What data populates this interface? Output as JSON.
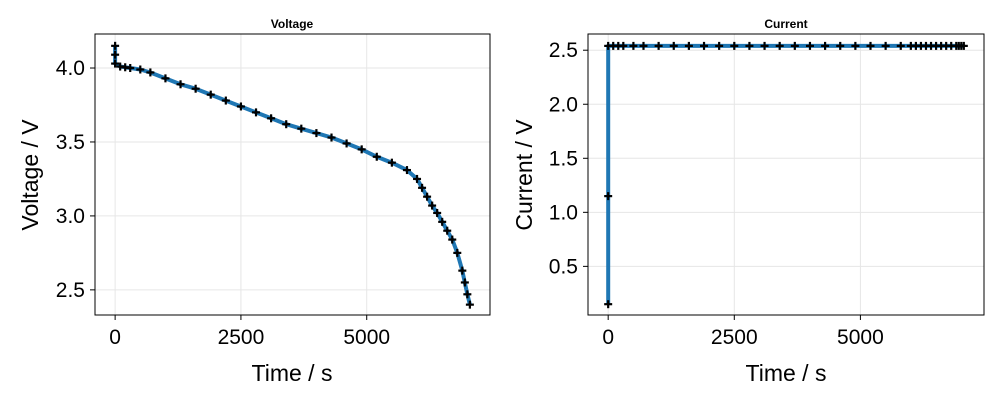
{
  "colors": {
    "line": "#1f77b4",
    "marker": "#000000",
    "grid": "#e6e6e6"
  },
  "chart_data": [
    {
      "type": "line",
      "title": "Voltage",
      "xlabel": "Time / s",
      "ylabel": "Voltage / V",
      "xlim": [
        -400,
        7450
      ],
      "ylim": [
        2.33,
        4.23
      ],
      "xticks": [
        0,
        2500,
        5000
      ],
      "xtick_labels": [
        "0",
        "2500",
        "5000"
      ],
      "yticks": [
        2.5,
        3.0,
        3.5,
        4.0
      ],
      "ytick_labels": [
        "2.5",
        "3.0",
        "3.5",
        "4.0"
      ],
      "grid": true,
      "series": [
        {
          "marker": "plus",
          "x": [
            0,
            0,
            0,
            100,
            200,
            300,
            500,
            700,
            1000,
            1300,
            1600,
            1900,
            2200,
            2500,
            2800,
            3100,
            3400,
            3700,
            4000,
            4300,
            4600,
            4900,
            5200,
            5500,
            5800,
            6000,
            6100,
            6200,
            6300,
            6400,
            6500,
            6600,
            6700,
            6800,
            6900,
            6950,
            7000,
            7050
          ],
          "y": [
            4.15,
            4.09,
            4.03,
            4.01,
            4.005,
            4.0,
            3.99,
            3.97,
            3.93,
            3.89,
            3.86,
            3.82,
            3.78,
            3.74,
            3.7,
            3.66,
            3.62,
            3.59,
            3.56,
            3.53,
            3.49,
            3.45,
            3.4,
            3.36,
            3.31,
            3.25,
            3.19,
            3.13,
            3.07,
            3.02,
            2.96,
            2.9,
            2.84,
            2.75,
            2.63,
            2.55,
            2.47,
            2.4
          ]
        }
      ]
    },
    {
      "type": "line",
      "title": "Current",
      "xlabel": "Time / s",
      "ylabel": "Current / V",
      "xlim": [
        -400,
        7450
      ],
      "ylim": [
        0.05,
        2.65
      ],
      "xticks": [
        0,
        2500,
        5000
      ],
      "xtick_labels": [
        "0",
        "2500",
        "5000"
      ],
      "yticks": [
        0.5,
        1.0,
        1.5,
        2.0,
        2.5
      ],
      "ytick_labels": [
        "0.5",
        "1.0",
        "1.5",
        "2.0",
        "2.5"
      ],
      "grid": true,
      "series": [
        {
          "marker": "plus",
          "x": [
            0,
            0,
            0,
            100,
            200,
            300,
            500,
            700,
            1000,
            1300,
            1600,
            1900,
            2200,
            2500,
            2800,
            3100,
            3400,
            3700,
            4000,
            4300,
            4600,
            4900,
            5200,
            5500,
            5800,
            6000,
            6100,
            6200,
            6300,
            6400,
            6500,
            6600,
            6700,
            6800,
            6900,
            6950,
            7000,
            7050
          ],
          "y": [
            0.15,
            1.15,
            2.54,
            2.54,
            2.54,
            2.54,
            2.54,
            2.54,
            2.54,
            2.54,
            2.54,
            2.54,
            2.54,
            2.54,
            2.54,
            2.54,
            2.54,
            2.54,
            2.54,
            2.54,
            2.54,
            2.54,
            2.54,
            2.54,
            2.54,
            2.54,
            2.54,
            2.54,
            2.54,
            2.54,
            2.54,
            2.54,
            2.54,
            2.54,
            2.54,
            2.54,
            2.54,
            2.54
          ]
        }
      ]
    }
  ]
}
